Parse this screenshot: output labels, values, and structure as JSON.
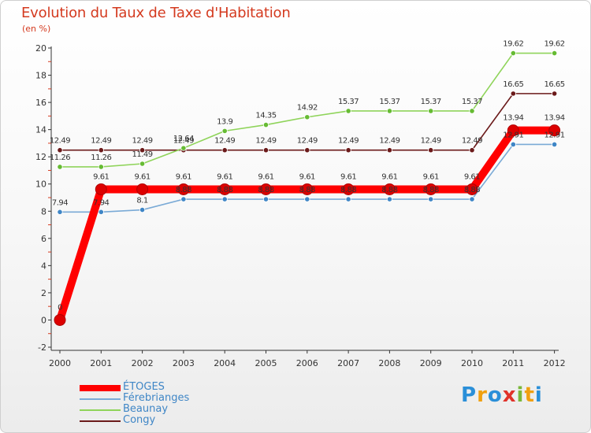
{
  "chart_data": {
    "type": "line",
    "title": "Evolution du Taux de Taxe d'Habitation",
    "subtitle": "(en %)",
    "categories": [
      "2000",
      "2001",
      "2002",
      "2003",
      "2004",
      "2005",
      "2006",
      "2007",
      "2008",
      "2009",
      "2010",
      "2011",
      "2012"
    ],
    "ylim": [
      -2,
      20
    ],
    "yticks": [
      -2,
      0,
      2,
      4,
      6,
      8,
      10,
      12,
      14,
      16,
      18,
      20
    ],
    "grid": false,
    "legend_position": "bottom-left",
    "series": [
      {
        "name": "Congy",
        "color": "#6b1a1a",
        "point_color": "#6b1a1a",
        "values": [
          12.49,
          12.49,
          12.49,
          12.49,
          12.49,
          12.49,
          12.49,
          12.49,
          12.49,
          12.49,
          12.49,
          16.65,
          16.65
        ],
        "labels": [
          "12.49",
          "12.49",
          "12.49",
          "12.49",
          "12.49",
          "12.49",
          "12.49",
          "12.49",
          "12.49",
          "12.49",
          "12.49",
          "16.65",
          "16.65"
        ]
      },
      {
        "name": "Beaunay",
        "color": "#8fd45a",
        "point_color": "#66bb33",
        "values": [
          11.26,
          11.26,
          11.49,
          12.64,
          13.9,
          14.35,
          14.92,
          15.37,
          15.37,
          15.37,
          15.37,
          19.62,
          19.62
        ],
        "labels": [
          "11.26",
          "11.26",
          "11.49",
          "12.64",
          "13.9",
          "14.35",
          "14.92",
          "15.37",
          "15.37",
          "15.37",
          "15.37",
          "19.62",
          "19.62"
        ]
      },
      {
        "name": "Férebrianges",
        "color": "#7aaad6",
        "point_color": "#3f86c6",
        "values": [
          7.94,
          7.94,
          8.1,
          8.88,
          8.88,
          8.88,
          8.88,
          8.88,
          8.88,
          8.88,
          8.88,
          12.91,
          12.91
        ],
        "labels": [
          "7.94",
          "7.94",
          "8.1",
          "8.88",
          "8.88",
          "8.88",
          "8.88",
          "8.88",
          "8.88",
          "8.88",
          "8.88",
          "12.91",
          "12.91"
        ]
      },
      {
        "name": "ÉTOGES",
        "color": "#ff0000",
        "point_color": "#dd0000",
        "values": [
          0,
          9.61,
          9.61,
          9.61,
          9.61,
          9.61,
          9.61,
          9.61,
          9.61,
          9.61,
          9.61,
          13.94,
          13.94
        ],
        "labels": [
          "0",
          "9.61",
          "9.61",
          "9.61",
          "9.61",
          "9.61",
          "9.61",
          "9.61",
          "9.61",
          "9.61",
          "9.61",
          "13.94",
          "13.94"
        ]
      }
    ],
    "legend_order": [
      "ÉTOGES",
      "Férebrianges",
      "Beaunay",
      "Congy"
    ]
  },
  "logo": {
    "text": "Proxiti",
    "letter_colors": [
      "#2a8fd8",
      "#f0a010",
      "#2a8fd8",
      "#e0322a",
      "#79b83a",
      "#f0a010",
      "#2a8fd8"
    ]
  }
}
